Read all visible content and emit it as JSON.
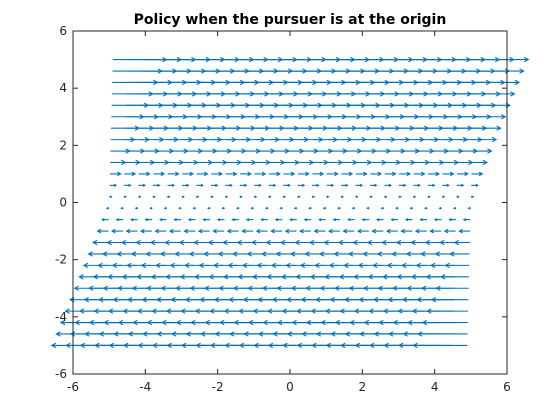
{
  "chart_data": {
    "type": "quiver",
    "title": "Policy when the pursuer is at the origin",
    "xlabel": "",
    "ylabel": "",
    "xlim": [
      -6,
      6
    ],
    "ylim": [
      -6,
      6
    ],
    "xticks": [
      -6,
      -4,
      -2,
      0,
      2,
      4,
      6
    ],
    "yticks": [
      -6,
      -4,
      -2,
      0,
      2,
      4,
      6
    ],
    "xtick_labels": [
      "-6",
      "-4",
      "-2",
      "0",
      "2",
      "4",
      "6"
    ],
    "ytick_labels": [
      "-6",
      "-4",
      "-2",
      "0",
      "2",
      "4",
      "6"
    ],
    "grid": false,
    "box": true,
    "arrow_color": "#0072bd",
    "grid_y": [
      -5.0,
      -4.6,
      -4.2,
      -3.8,
      -3.4,
      -3.0,
      -2.6,
      -2.2,
      -1.8,
      -1.4,
      -1.0,
      -0.6,
      -0.2,
      0.2,
      0.6,
      1.0,
      1.4,
      1.8,
      2.2,
      2.6,
      3.0,
      3.4,
      3.8,
      4.2,
      4.6,
      5.0
    ],
    "grid_x": [
      -5.0,
      -4.6,
      -4.2,
      -3.8,
      -3.4,
      -3.0,
      -2.6,
      -2.2,
      -1.8,
      -1.4,
      -1.0,
      -0.6,
      -0.2,
      0.2,
      0.6,
      1.0,
      1.4,
      1.8,
      2.2,
      2.6,
      3.0,
      3.4,
      3.8,
      4.2,
      4.6,
      5.0
    ],
    "u_direction": "x-component equals sign of y (arrows point right above the origin, left below it)",
    "u_scale_per_unit_y": 0.11
  }
}
